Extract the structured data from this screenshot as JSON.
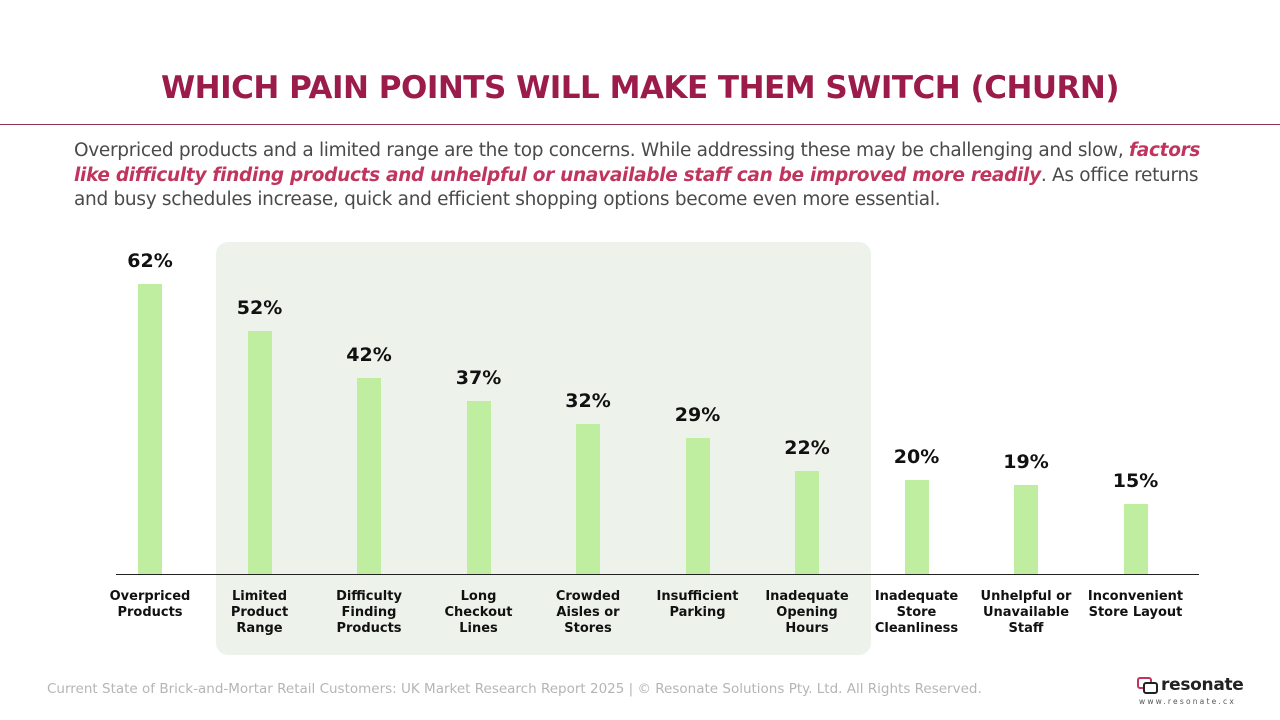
{
  "title": "WHICH PAIN POINTS WILL MAKE THEM SWITCH (CHURN)",
  "subtitle": [
    "Overpriced products and a limited range are the top concerns. While addressing these may be challenging and slow, ",
    "factors like difficulty finding products and unhelpful or unavailable staff can be improved more readily",
    ". As office returns and busy schedules increase, quick and efficient shopping options become even more essential."
  ],
  "chart_data": {
    "type": "bar",
    "categories": [
      "Overpriced Products",
      "Limited Product Range",
      "Difficulty Finding Products",
      "Long Checkout Lines",
      "Crowded Aisles or Stores",
      "Insufficient Parking",
      "Inadequate Opening Hours",
      "Inadequate Store Cleanliness",
      "Unhelpful or Unavailable Staff",
      "Inconvenient Store Layout"
    ],
    "values": [
      62,
      52,
      42,
      37,
      32,
      29,
      22,
      20,
      19,
      15
    ],
    "value_labels": [
      "62%",
      "52%",
      "42%",
      "37%",
      "32%",
      "29%",
      "22%",
      "20%",
      "19%",
      "15%"
    ],
    "color": "#bfeea0",
    "ylim": [
      0,
      65
    ]
  },
  "footer": "Current State of Brick-and-Mortar Retail Customers: UK Market Research Report 2025 | © Resonate Solutions Pty. Ltd. All Rights Reserved.",
  "logo": {
    "name": "resonate",
    "url": "www.resonate.cx"
  }
}
